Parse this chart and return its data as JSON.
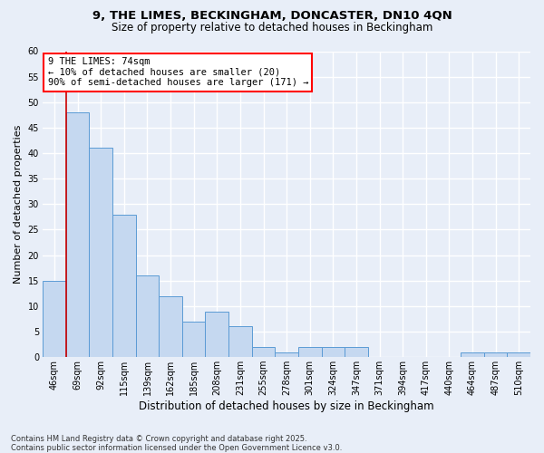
{
  "title_line1": "9, THE LIMES, BECKINGHAM, DONCASTER, DN10 4QN",
  "title_line2": "Size of property relative to detached houses in Beckingham",
  "xlabel": "Distribution of detached houses by size in Beckingham",
  "ylabel": "Number of detached properties",
  "footer": "Contains HM Land Registry data © Crown copyright and database right 2025.\nContains public sector information licensed under the Open Government Licence v3.0.",
  "categories": [
    "46sqm",
    "69sqm",
    "92sqm",
    "115sqm",
    "139sqm",
    "162sqm",
    "185sqm",
    "208sqm",
    "231sqm",
    "255sqm",
    "278sqm",
    "301sqm",
    "324sqm",
    "347sqm",
    "371sqm",
    "394sqm",
    "417sqm",
    "440sqm",
    "464sqm",
    "487sqm",
    "510sqm"
  ],
  "values": [
    15,
    48,
    41,
    28,
    16,
    12,
    7,
    9,
    6,
    2,
    1,
    2,
    2,
    2,
    0,
    0,
    0,
    0,
    1,
    1,
    1
  ],
  "bar_color": "#c5d8f0",
  "bar_edge_color": "#5b9bd5",
  "bg_color": "#e8eef8",
  "grid_color": "#ffffff",
  "vline_color": "#cc0000",
  "vline_x": 0.5,
  "annotation_text": "9 THE LIMES: 74sqm\n← 10% of detached houses are smaller (20)\n90% of semi-detached houses are larger (171) →",
  "ylim": [
    0,
    60
  ],
  "yticks": [
    0,
    5,
    10,
    15,
    20,
    25,
    30,
    35,
    40,
    45,
    50,
    55,
    60
  ],
  "title1_fontsize": 9.5,
  "title2_fontsize": 8.5,
  "ylabel_fontsize": 8,
  "xlabel_fontsize": 8.5,
  "tick_fontsize": 7,
  "annot_fontsize": 7.5,
  "footer_fontsize": 6
}
